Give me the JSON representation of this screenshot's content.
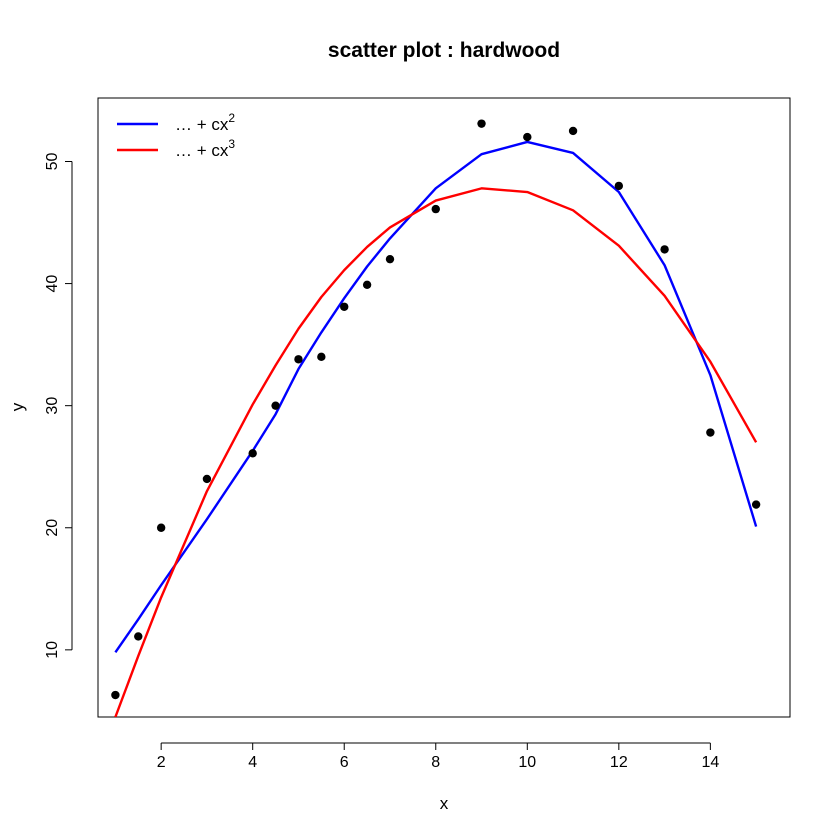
{
  "chart_data": {
    "type": "scatter",
    "title": "scatter plot : hardwood",
    "xlabel": "x",
    "ylabel": "y",
    "xlim": [
      0.62,
      15.74
    ],
    "ylim": [
      4.5,
      55.2
    ],
    "xticks": [
      2,
      4,
      6,
      8,
      10,
      12,
      14
    ],
    "yticks": [
      10,
      20,
      30,
      40,
      50
    ],
    "grid": false,
    "legend_position": "top-left",
    "points": {
      "color": "#000000",
      "x": [
        1,
        1.5,
        2,
        3,
        4,
        4.5,
        5,
        5.5,
        6,
        6.5,
        7,
        8,
        9,
        10,
        11,
        12,
        13,
        14,
        15
      ],
      "y": [
        6.3,
        11.1,
        20.0,
        24.0,
        26.1,
        30.0,
        33.8,
        34.0,
        38.1,
        39.9,
        42.0,
        46.1,
        53.1,
        52.0,
        52.5,
        48.0,
        42.8,
        27.8,
        21.9
      ]
    },
    "series": [
      {
        "name_prefix": "… + cx",
        "name_power": "2",
        "color": "#0000ff",
        "x": [
          1,
          1.5,
          2,
          3,
          4,
          4.5,
          5,
          5.5,
          6,
          6.5,
          7,
          8,
          9,
          10,
          11,
          12,
          13,
          14,
          15
        ],
        "y": [
          9.8,
          12.5,
          15.3,
          20.7,
          26.3,
          29.3,
          33.0,
          36.0,
          38.8,
          41.4,
          43.7,
          47.8,
          50.6,
          51.6,
          50.7,
          47.5,
          41.5,
          32.5,
          20.1
        ]
      },
      {
        "name_prefix": "… + cx",
        "name_power": "3",
        "color": "#ff0000",
        "x": [
          1,
          1.5,
          2,
          3,
          4,
          4.5,
          5,
          5.5,
          6,
          6.5,
          7,
          8,
          9,
          10,
          11,
          12,
          13,
          14,
          15
        ],
        "y": [
          4.5,
          9.5,
          14.3,
          23.0,
          30.1,
          33.3,
          36.3,
          38.9,
          41.1,
          43.0,
          44.6,
          46.8,
          47.8,
          47.5,
          46.0,
          43.1,
          39.0,
          33.6,
          27.0
        ]
      }
    ]
  }
}
